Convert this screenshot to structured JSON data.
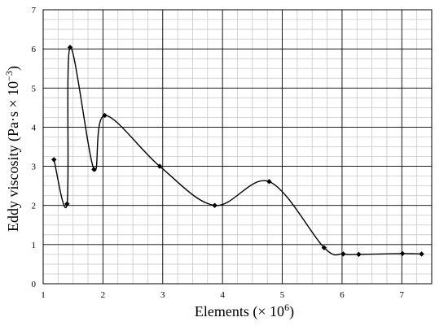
{
  "chart_data": {
    "type": "line",
    "title": "",
    "xlabel": "Elements (× 10",
    "xlabel_exp": "6",
    "xlabel_tail": ")",
    "ylabel": "Eddy viscosity (Pa·s × 10",
    "ylabel_exp": "−3",
    "ylabel_tail": ")",
    "xlim": [
      1,
      7.5
    ],
    "ylim": [
      0,
      7
    ],
    "x_ticks": [
      1,
      2,
      3,
      4,
      5,
      6,
      7
    ],
    "x_tick_labels": [
      "1",
      "2",
      "3",
      "4",
      "5",
      "6",
      "7"
    ],
    "y_ticks": [
      0,
      1,
      2,
      3,
      4,
      5,
      6,
      7
    ],
    "y_tick_labels": [
      "0",
      "1",
      "2",
      "3",
      "4",
      "5",
      "6",
      "7"
    ],
    "grid": true,
    "minor_grid": true,
    "legend": "none",
    "series": [
      {
        "x": [
          1.18,
          1.4,
          1.45,
          1.85,
          2.03,
          2.95,
          3.87,
          4.78,
          5.7,
          6.02,
          6.28,
          7.01,
          7.33
        ],
        "values": [
          3.17,
          2.04,
          6.04,
          2.92,
          4.3,
          3.0,
          2.0,
          2.61,
          0.92,
          0.76,
          0.75,
          0.77,
          0.76
        ]
      }
    ],
    "line_color": "#000000",
    "marker_color": "#000000",
    "grid_major_color": "#000000",
    "grid_minor_color": "#c8c8c8"
  }
}
